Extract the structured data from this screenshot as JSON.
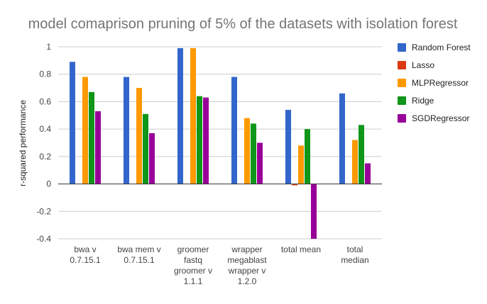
{
  "chart_data": {
    "type": "bar",
    "title": "model comaprison pruning of 5% of the datasets with isolation forest",
    "ylabel": "r-squared performance",
    "xlabel": "",
    "ylim": [
      -0.4,
      1.0
    ],
    "yticks": [
      1,
      0.8,
      0.6,
      0.4,
      0.2,
      0,
      -0.2,
      -0.4
    ],
    "ytick_labels": [
      "1",
      "0.8",
      "0.6",
      "0.4",
      "0.2",
      "0",
      "-0.2",
      "-0.4"
    ],
    "grid": true,
    "legend_position": "right",
    "categories": [
      [
        "bwa v",
        "0.7.15.1"
      ],
      [
        "bwa mem v",
        "0.7.15.1"
      ],
      [
        "groomer",
        "fastq",
        "groomer v",
        "1.1.1"
      ],
      [
        "wrapper",
        "megablast",
        "wrapper v",
        "1.2.0"
      ],
      [
        "total mean"
      ],
      [
        "total",
        "median"
      ]
    ],
    "series": [
      {
        "name": "Random Forest",
        "color": "#3366cc",
        "values": [
          0.89,
          0.78,
          0.99,
          0.78,
          0.54,
          0.66
        ]
      },
      {
        "name": "Lasso",
        "color": "#dc3912",
        "values": [
          0.0,
          0.0,
          0.0,
          0.0,
          -0.01,
          0.0
        ]
      },
      {
        "name": "MLPRegressor",
        "color": "#ff9900",
        "values": [
          0.78,
          0.7,
          0.99,
          0.48,
          0.28,
          0.32
        ]
      },
      {
        "name": "Ridge",
        "color": "#109618",
        "values": [
          0.67,
          0.51,
          0.64,
          0.44,
          0.4,
          0.43
        ]
      },
      {
        "name": "SGDRegressor",
        "color": "#990099",
        "values": [
          0.53,
          0.37,
          0.63,
          0.3,
          -0.4,
          0.15
        ]
      }
    ]
  }
}
